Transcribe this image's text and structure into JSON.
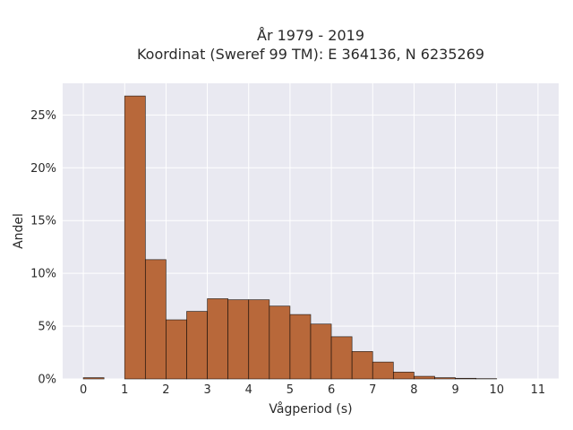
{
  "chart_data": {
    "type": "bar",
    "title_line1": "År 1979 - 2019",
    "title_line2": "Koordinat (Sweref 99 TM): E 364136, N 6235269",
    "xlabel": "Vågperiod (s)",
    "ylabel": "Andel",
    "xlim": [
      -0.5,
      11.5
    ],
    "ylim": [
      0,
      0.28
    ],
    "xticks": [
      0,
      1,
      2,
      3,
      4,
      5,
      6,
      7,
      8,
      9,
      10,
      11
    ],
    "yticks": [
      0,
      0.05,
      0.1,
      0.15,
      0.2,
      0.25
    ],
    "ytick_labels": [
      "0%",
      "5%",
      "10%",
      "15%",
      "20%",
      "25%"
    ],
    "bin_width": 0.5,
    "bins": [
      {
        "x": 0.0,
        "value": 0.0012
      },
      {
        "x": 1.0,
        "value": 0.268
      },
      {
        "x": 1.5,
        "value": 0.113
      },
      {
        "x": 2.0,
        "value": 0.056
      },
      {
        "x": 2.5,
        "value": 0.064
      },
      {
        "x": 3.0,
        "value": 0.076
      },
      {
        "x": 3.5,
        "value": 0.075
      },
      {
        "x": 4.0,
        "value": 0.075
      },
      {
        "x": 4.5,
        "value": 0.069
      },
      {
        "x": 5.0,
        "value": 0.061
      },
      {
        "x": 5.5,
        "value": 0.052
      },
      {
        "x": 6.0,
        "value": 0.04
      },
      {
        "x": 6.5,
        "value": 0.026
      },
      {
        "x": 7.0,
        "value": 0.016
      },
      {
        "x": 7.5,
        "value": 0.0065
      },
      {
        "x": 8.0,
        "value": 0.0025
      },
      {
        "x": 8.5,
        "value": 0.0012
      },
      {
        "x": 9.0,
        "value": 0.0006
      },
      {
        "x": 9.5,
        "value": 0.0003
      }
    ],
    "grid": true,
    "colors": {
      "bar": "#b8683a",
      "plot_background": "#e9e9f1",
      "grid": "#ffffff"
    }
  }
}
